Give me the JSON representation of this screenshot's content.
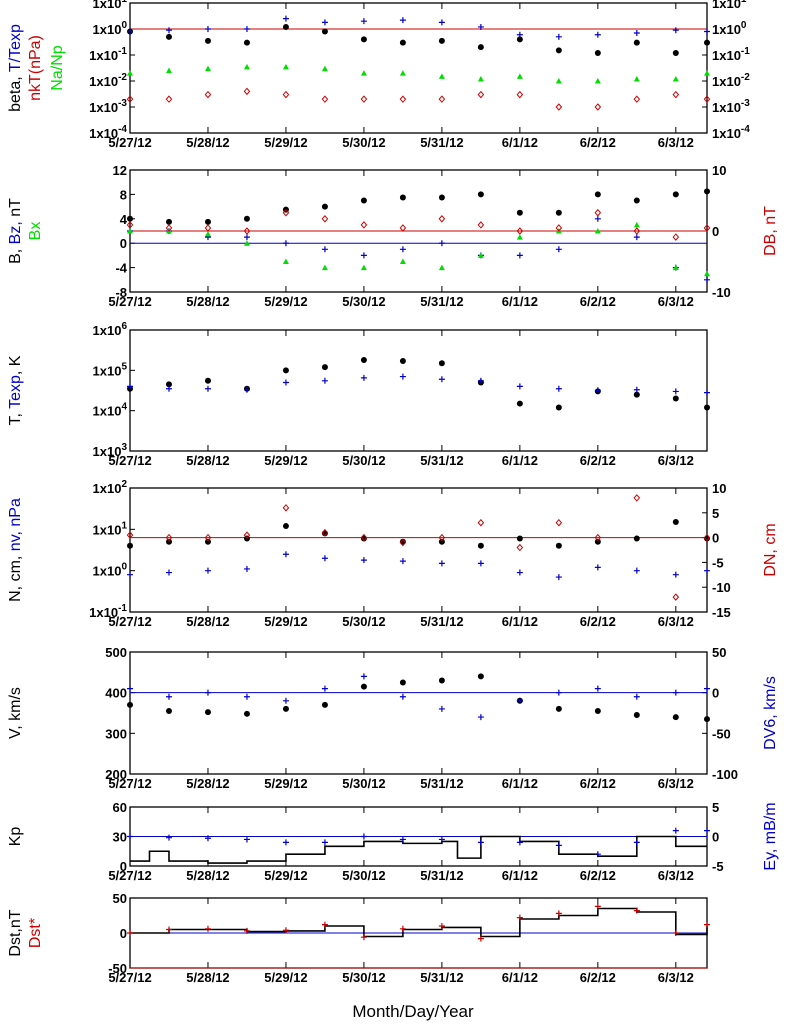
{
  "figure": {
    "xlabel": "Month/Day/Year",
    "date_ticks": [
      "5/27/12",
      "5/28/12",
      "5/29/12",
      "5/30/12",
      "5/31/12",
      "6/1/12",
      "6/2/12",
      "6/3/12"
    ],
    "x_range_days": [
      0,
      7.4
    ]
  },
  "colors": {
    "black": "#000000",
    "blue": "#0000cc",
    "red": "#cc0000",
    "green": "#00dd00"
  },
  "chart_data": [
    {
      "id": "p1",
      "type": "scatter",
      "yscale": "log",
      "ylim": [
        0.0001,
        10
      ],
      "left_ticks": [
        "1x10",
        "1x10",
        "1x10",
        "1x10",
        "1x10",
        "1x10"
      ],
      "left_tick_exps": [
        "1",
        "0",
        "-1",
        "-2",
        "-3",
        "-4"
      ],
      "right_ticks": [
        "1x10",
        "1x10",
        "1x10",
        "1x10",
        "1x10",
        "1x10"
      ],
      "right_tick_exps": [
        "1",
        "0",
        "-1",
        "-2",
        "-3",
        "-4"
      ],
      "ylabel_left": [
        {
          "text": "beta, ",
          "color": "black"
        },
        {
          "text": "T/Texp",
          "color": "blue"
        }
      ],
      "ylabel_left2": [
        {
          "text": "nkT(nPa)",
          "color": "red"
        }
      ],
      "ylabel_left3": [
        {
          "text": "Na/Np",
          "color": "green"
        }
      ],
      "reference_line": {
        "value": 1,
        "color": "red"
      },
      "series": [
        {
          "label": "beta",
          "color": "black",
          "marker": "dot",
          "x": [
            0,
            0.5,
            1,
            1.5,
            2,
            2.5,
            3,
            3.5,
            4,
            4.5,
            5,
            5.5,
            6,
            6.5,
            7,
            7.4
          ],
          "y": [
            0.8,
            0.5,
            0.35,
            0.3,
            1.2,
            0.8,
            0.4,
            0.3,
            0.35,
            0.2,
            0.4,
            0.15,
            0.12,
            0.3,
            0.12,
            0.3
          ]
        },
        {
          "label": "T/Texp",
          "color": "blue",
          "marker": "plus",
          "x": [
            0,
            0.5,
            1,
            1.5,
            2,
            2.5,
            3,
            3.5,
            4,
            4.5,
            5,
            5.5,
            6,
            6.5,
            7,
            7.4
          ],
          "y": [
            0.8,
            0.9,
            1.0,
            1.0,
            2.5,
            1.8,
            2.0,
            2.2,
            1.8,
            1.2,
            0.6,
            0.5,
            0.6,
            0.7,
            0.9,
            0.8
          ]
        },
        {
          "label": "nkT(nPa)",
          "color": "red",
          "marker": "diamond",
          "x": [
            0,
            0.5,
            1,
            1.5,
            2,
            2.5,
            3,
            3.5,
            4,
            4.5,
            5,
            5.5,
            6,
            6.5,
            7,
            7.4
          ],
          "y": [
            0.002,
            0.002,
            0.003,
            0.004,
            0.003,
            0.002,
            0.002,
            0.002,
            0.002,
            0.003,
            0.003,
            0.001,
            0.001,
            0.002,
            0.003,
            0.002
          ]
        },
        {
          "label": "Na/Np",
          "color": "green",
          "marker": "triangle",
          "x": [
            0,
            0.5,
            1,
            1.5,
            2,
            2.5,
            3,
            3.5,
            4,
            4.5,
            5,
            5.5,
            6,
            6.5,
            7,
            7.4
          ],
          "y": [
            0.02,
            0.025,
            0.03,
            0.035,
            0.035,
            0.03,
            0.02,
            0.02,
            0.015,
            0.012,
            0.015,
            0.01,
            0.01,
            0.012,
            0.012,
            0.02
          ]
        }
      ]
    },
    {
      "id": "p2",
      "type": "scatter",
      "ylim": [
        -8,
        12
      ],
      "left_ticks": [
        "12",
        "8",
        "4",
        "0",
        "-4",
        "-8"
      ],
      "left_tick_values": [
        12,
        8,
        4,
        0,
        -4,
        -8
      ],
      "right_ticks": [
        "10",
        "0",
        "-10"
      ],
      "right_tick_values": [
        10,
        0,
        -10
      ],
      "right_lim": [
        -10,
        10
      ],
      "ylabel_left": [
        {
          "text": "B, ",
          "color": "black"
        },
        {
          "text": "Bz, ",
          "color": "blue"
        },
        {
          "text": "nT",
          "color": "black"
        }
      ],
      "ylabel_left2": [
        {
          "text": "Bx",
          "color": "green"
        }
      ],
      "ylabel_right": [
        {
          "text": "DB, nT",
          "color": "red"
        }
      ],
      "zero_line": {
        "value": 0,
        "color": "blue"
      },
      "reference_line": {
        "value": 2,
        "color": "red"
      },
      "series": [
        {
          "label": "B",
          "color": "black",
          "marker": "dot",
          "x": [
            0,
            0.5,
            1,
            1.5,
            2,
            2.5,
            3,
            3.5,
            4,
            4.5,
            5,
            5.5,
            6,
            6.5,
            7,
            7.4
          ],
          "y": [
            4,
            3.5,
            3.5,
            4,
            5.5,
            6,
            7,
            7.5,
            7.5,
            8,
            5,
            5,
            8,
            7,
            8,
            8.5
          ]
        },
        {
          "label": "Bz",
          "color": "blue",
          "marker": "plus",
          "x": [
            0,
            0.5,
            1,
            1.5,
            2,
            2.5,
            3,
            3.5,
            4,
            4.5,
            5,
            5.5,
            6,
            6.5,
            7,
            7.4
          ],
          "y": [
            2,
            2,
            1,
            1,
            0,
            -1,
            -2,
            -1,
            0,
            -2,
            -2,
            -1,
            4,
            1,
            -4,
            -6
          ]
        },
        {
          "label": "Bx",
          "color": "green",
          "marker": "triangle",
          "x": [
            0,
            0.5,
            1,
            1.5,
            2,
            2.5,
            3,
            3.5,
            4,
            4.5,
            5,
            5.5,
            6,
            6.5,
            7,
            7.4
          ],
          "y": [
            2,
            2,
            1.5,
            0,
            -3,
            -4,
            -4,
            -3,
            -4,
            -2,
            1,
            2,
            2,
            3,
            -4,
            -5
          ]
        },
        {
          "label": "DB",
          "color": "red",
          "marker": "diamond",
          "x": [
            0,
            0.5,
            1,
            1.5,
            2,
            2.5,
            3,
            3.5,
            4,
            4.5,
            5,
            5.5,
            6,
            6.5,
            7,
            7.4
          ],
          "y": [
            1,
            0.5,
            0.5,
            0,
            3,
            2,
            1,
            0.5,
            2,
            1,
            0,
            0.5,
            3,
            0,
            -1,
            0.5
          ]
        }
      ]
    },
    {
      "id": "p3",
      "type": "scatter",
      "yscale": "log",
      "ylim": [
        1000,
        1000000
      ],
      "left_ticks": [
        "1x10",
        "1x10",
        "1x10",
        "1x10"
      ],
      "left_tick_exps": [
        "6",
        "5",
        "4",
        "3"
      ],
      "ylabel_left": [
        {
          "text": "T, ",
          "color": "black"
        },
        {
          "text": "Texp",
          "color": "blue"
        },
        {
          "text": ", K",
          "color": "black"
        }
      ],
      "series": [
        {
          "label": "T",
          "color": "black",
          "marker": "dot",
          "x": [
            0,
            0.5,
            1,
            1.5,
            2,
            2.5,
            3,
            3.5,
            4,
            4.5,
            5,
            5.5,
            6,
            6.5,
            7,
            7.4
          ],
          "y": [
            35000,
            45000,
            55000,
            35000,
            100000,
            120000,
            180000,
            170000,
            150000,
            50000,
            15000,
            12000,
            30000,
            25000,
            20000,
            12000
          ]
        },
        {
          "label": "Texp",
          "color": "blue",
          "marker": "plus",
          "x": [
            0,
            0.5,
            1,
            1.5,
            2,
            2.5,
            3,
            3.5,
            4,
            4.5,
            5,
            5.5,
            6,
            6.5,
            7,
            7.4
          ],
          "y": [
            40000,
            35000,
            35000,
            33000,
            50000,
            55000,
            65000,
            70000,
            60000,
            55000,
            40000,
            35000,
            32000,
            33000,
            30000,
            28000
          ]
        }
      ]
    },
    {
      "id": "p4",
      "type": "scatter",
      "yscale": "log",
      "ylim": [
        0.1,
        100
      ],
      "left_ticks": [
        "1x10",
        "1x10",
        "1x10",
        "1x10"
      ],
      "left_tick_exps": [
        "2",
        "1",
        "0",
        "-1"
      ],
      "right_ticks": [
        "10",
        "5",
        "0",
        "-5",
        "-10",
        "-15"
      ],
      "right_tick_values": [
        10,
        5,
        0,
        -5,
        -10,
        -15
      ],
      "right_lim": [
        -15,
        10
      ],
      "ylabel_left": [
        {
          "text": "N, cm",
          "color": "black"
        },
        {
          "text": ", ",
          "color": "black"
        },
        {
          "text": "nv",
          "color": "blue"
        },
        {
          "text": ", nPa",
          "color": "blue"
        }
      ],
      "ylabel_right": [
        {
          "text": "DN, cm",
          "color": "red"
        }
      ],
      "reference_line_right": {
        "value": 0,
        "color": "red"
      },
      "series": [
        {
          "label": "N",
          "color": "black",
          "marker": "dot",
          "x": [
            0,
            0.5,
            1,
            1.5,
            2,
            2.5,
            3,
            3.5,
            4,
            4.5,
            5,
            5.5,
            6,
            6.5,
            7,
            7.4
          ],
          "y": [
            4,
            5,
            5,
            6,
            12,
            8,
            6,
            5,
            5,
            4,
            6,
            4,
            5,
            6,
            15,
            6
          ]
        },
        {
          "label": "nv2",
          "color": "blue",
          "marker": "plus",
          "x": [
            0,
            0.5,
            1,
            1.5,
            2,
            2.5,
            3,
            3.5,
            4,
            4.5,
            5,
            5.5,
            6,
            6.5,
            7,
            7.4
          ],
          "y": [
            0.8,
            0.9,
            1.0,
            1.1,
            2.5,
            2.0,
            1.8,
            1.7,
            1.5,
            1.5,
            0.9,
            0.7,
            1.2,
            1.0,
            0.8,
            1.0
          ]
        },
        {
          "label": "DN",
          "color": "red",
          "marker": "diamond",
          "x": [
            0,
            0.5,
            1,
            1.5,
            2,
            2.5,
            3,
            3.5,
            4,
            4.5,
            5,
            5.5,
            6,
            6.5,
            7,
            7.4
          ],
          "y": [
            0.5,
            0,
            0,
            0.5,
            6,
            1,
            0,
            -1,
            0,
            3,
            -2,
            3,
            0,
            8,
            -12,
            0
          ]
        }
      ]
    },
    {
      "id": "p5",
      "type": "scatter",
      "ylim": [
        200,
        500
      ],
      "left_ticks": [
        "500",
        "400",
        "300",
        "200"
      ],
      "left_tick_values": [
        500,
        400,
        300,
        200
      ],
      "right_ticks": [
        "50",
        "0",
        "-50",
        "-100"
      ],
      "right_tick_values": [
        50,
        0,
        -50,
        -100
      ],
      "right_lim": [
        -100,
        50
      ],
      "ylabel_left": [
        {
          "text": "V, km/s",
          "color": "black"
        }
      ],
      "ylabel_right": [
        {
          "text": "DV6, km/s",
          "color": "blue"
        }
      ],
      "zero_line_right": {
        "value": 0,
        "color": "blue"
      },
      "series": [
        {
          "label": "V",
          "color": "black",
          "marker": "dot",
          "x": [
            0,
            0.5,
            1,
            1.5,
            2,
            2.5,
            3,
            3.5,
            4,
            4.5,
            5,
            5.5,
            6,
            6.5,
            7,
            7.4
          ],
          "y": [
            370,
            355,
            352,
            348,
            360,
            370,
            415,
            425,
            430,
            440,
            380,
            360,
            355,
            345,
            340,
            335
          ]
        },
        {
          "label": "DV6",
          "color": "blue",
          "marker": "plus",
          "x": [
            0,
            0.5,
            1,
            1.5,
            2,
            2.5,
            3,
            3.5,
            4,
            4.5,
            5,
            5.5,
            6,
            6.5,
            7,
            7.4
          ],
          "y": [
            5,
            -5,
            0,
            -5,
            -10,
            5,
            20,
            -5,
            -20,
            -30,
            -10,
            0,
            5,
            -5,
            0,
            5
          ]
        }
      ]
    },
    {
      "id": "p6",
      "type": "line",
      "ylim": [
        0,
        60
      ],
      "left_ticks": [
        "60",
        "30",
        "0"
      ],
      "left_tick_values": [
        60,
        30,
        0
      ],
      "right_ticks": [
        "5",
        "0",
        "-5"
      ],
      "right_tick_values": [
        5,
        0,
        -5
      ],
      "right_lim": [
        -5,
        5
      ],
      "ylabel_left": [
        {
          "text": "Kp",
          "color": "black"
        }
      ],
      "ylabel_right": [
        {
          "text": "Ey,  mB/m",
          "color": "blue"
        }
      ],
      "zero_line_right": {
        "value": 0,
        "color": "blue"
      },
      "series": [
        {
          "label": "Kp",
          "color": "black",
          "marker": "line",
          "x": [
            0,
            0.25,
            0.5,
            1,
            1.5,
            2,
            2.5,
            3,
            3.5,
            4,
            4.2,
            4.5,
            5,
            5.5,
            6,
            6.5,
            7,
            7.4
          ],
          "y": [
            5,
            15,
            5,
            3,
            5,
            12,
            20,
            25,
            23,
            25,
            8,
            30,
            25,
            12,
            10,
            30,
            20,
            20
          ]
        },
        {
          "label": "Ey",
          "color": "blue",
          "marker": "plus",
          "x": [
            0,
            0.5,
            1,
            1.5,
            2,
            2.5,
            3,
            3.5,
            4,
            4.5,
            5,
            5.5,
            6,
            6.5,
            7,
            7.4
          ],
          "y": [
            0,
            -0.2,
            -0.3,
            -0.5,
            -1,
            -1,
            0,
            -0.5,
            -0.5,
            -1,
            -1,
            -1.5,
            -3,
            -1,
            1,
            1
          ]
        }
      ]
    },
    {
      "id": "p7",
      "type": "line",
      "ylim": [
        -50,
        50
      ],
      "left_ticks": [
        "50",
        "0",
        "-50"
      ],
      "left_tick_values": [
        50,
        0,
        -50
      ],
      "ylabel_left": [
        {
          "text": "Dst,nT",
          "color": "black"
        }
      ],
      "ylabel_left2": [
        {
          "text": "Dst*",
          "color": "red"
        }
      ],
      "zero_line": {
        "value": 0,
        "color": "blue"
      },
      "bottom_line": {
        "value": -50,
        "color": "red"
      },
      "series": [
        {
          "label": "Dst",
          "color": "black",
          "marker": "line",
          "x": [
            0,
            0.5,
            1,
            1.5,
            2,
            2.5,
            3,
            3.5,
            4,
            4.5,
            5,
            5.5,
            6,
            6.5,
            7,
            7.4
          ],
          "y": [
            0,
            5,
            5,
            2,
            3,
            10,
            -5,
            5,
            8,
            -5,
            20,
            25,
            35,
            30,
            -2,
            10
          ]
        },
        {
          "label": "Dst*",
          "color": "red",
          "marker": "plus",
          "x": [
            0,
            0.5,
            1,
            1.5,
            2,
            2.5,
            3,
            3.5,
            4,
            4.5,
            5,
            5.5,
            6,
            6.5,
            7,
            7.4
          ],
          "y": [
            0,
            5,
            6,
            3,
            4,
            12,
            -6,
            6,
            10,
            -8,
            22,
            28,
            38,
            32,
            0,
            12
          ]
        }
      ]
    }
  ]
}
